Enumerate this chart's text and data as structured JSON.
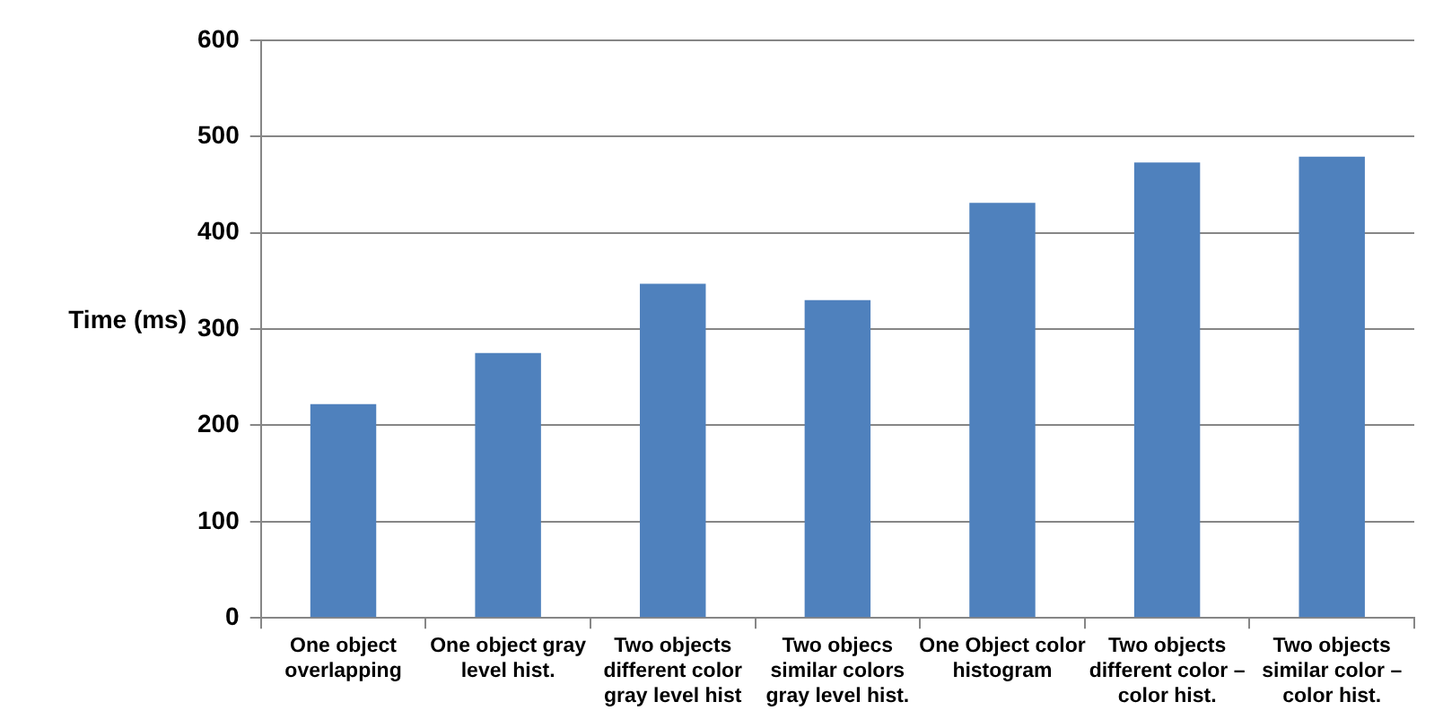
{
  "chart_data": {
    "type": "bar",
    "ylabel": "Time (ms)",
    "categories": [
      "One object overlapping",
      "One object gray level hist.",
      "Two objects different color gray level hist",
      "Two objecs similar colors gray level hist.",
      "One Object color histogram",
      "Two objects different color – color hist.",
      "Two objects similar color – color hist."
    ],
    "values": [
      222,
      275,
      347,
      330,
      431,
      473,
      479
    ],
    "color": "#4f81bd",
    "ylim": [
      0,
      600
    ],
    "yticks": [
      0,
      100,
      200,
      300,
      400,
      500,
      600
    ],
    "grid": "y",
    "legend": false
  }
}
